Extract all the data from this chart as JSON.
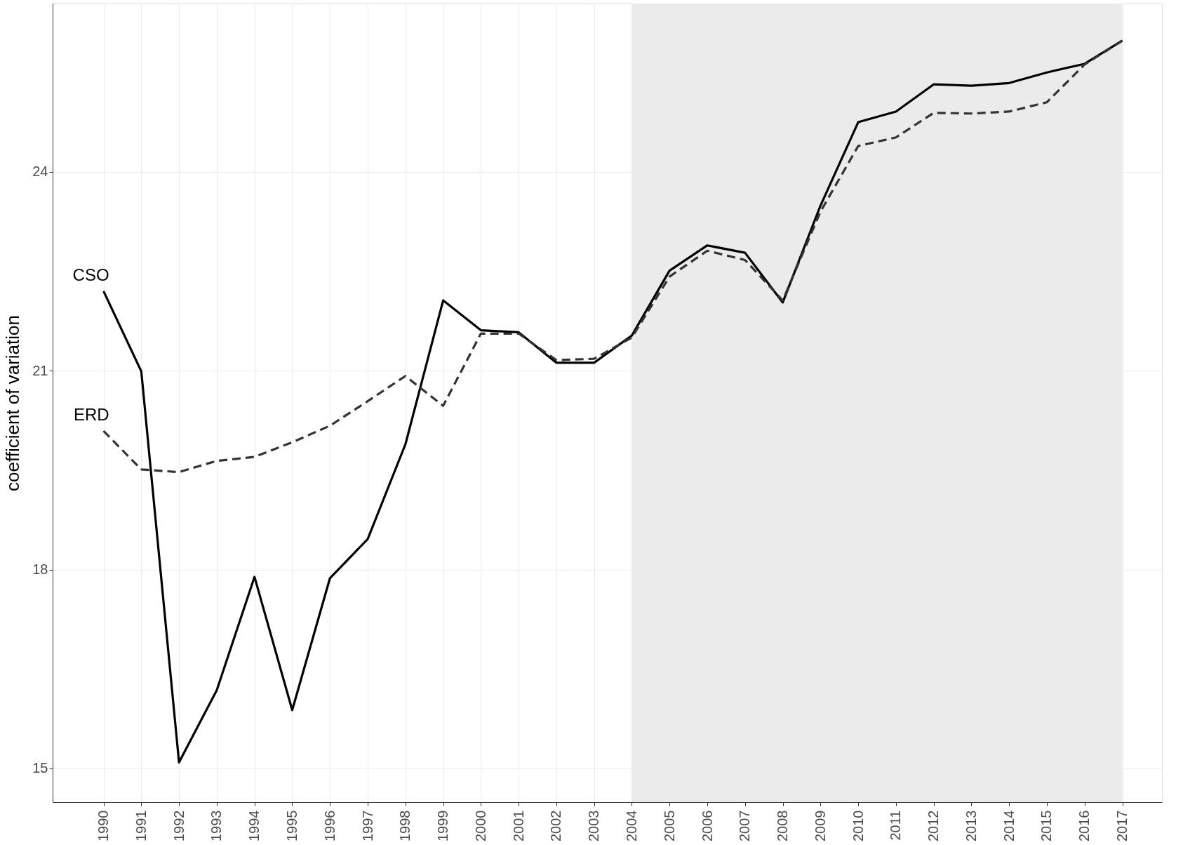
{
  "chart_data": {
    "type": "line",
    "ylabel": "coefficient of variation",
    "x": [
      1990,
      1991,
      1992,
      1993,
      1994,
      1995,
      1996,
      1997,
      1998,
      1999,
      2000,
      2001,
      2002,
      2003,
      2004,
      2005,
      2006,
      2007,
      2008,
      2009,
      2010,
      2011,
      2012,
      2013,
      2014,
      2015,
      2016,
      2017
    ],
    "series": [
      {
        "name": "CSO",
        "color": "#000000",
        "line_style": "solid",
        "values": [
          22.2,
          20.99,
          15.09,
          16.18,
          17.89,
          15.88,
          17.87,
          18.46,
          19.89,
          22.06,
          21.61,
          21.58,
          21.12,
          21.12,
          21.53,
          22.51,
          22.89,
          22.78,
          22.03,
          23.49,
          24.75,
          24.91,
          25.32,
          25.3,
          25.34,
          25.5,
          25.63,
          25.98
        ]
      },
      {
        "name": "ERD",
        "color": "#333333",
        "line_style": "dashed",
        "values": [
          20.09,
          19.51,
          19.47,
          19.64,
          19.7,
          19.92,
          20.17,
          20.54,
          20.92,
          20.47,
          21.56,
          21.56,
          21.16,
          21.18,
          21.5,
          22.42,
          22.81,
          22.67,
          22.06,
          23.4,
          24.39,
          24.52,
          24.89,
          24.88,
          24.91,
          25.05,
          25.62,
          25.98
        ]
      }
    ],
    "xlim": [
      1988.65,
      2018.05
    ],
    "xticks": [
      1990,
      1991,
      1992,
      1993,
      1994,
      1995,
      1996,
      1997,
      1998,
      1999,
      2000,
      2001,
      2002,
      2003,
      2004,
      2005,
      2006,
      2007,
      2008,
      2009,
      2010,
      2011,
      2012,
      2013,
      2014,
      2015,
      2016,
      2017
    ],
    "ylim": [
      14.49,
      26.54
    ],
    "yticks": [
      15,
      18,
      21,
      24
    ],
    "bands": [
      {
        "axis": "x",
        "from": 2004,
        "to": 2017,
        "color": "#ebebeb"
      }
    ],
    "grid": true
  }
}
